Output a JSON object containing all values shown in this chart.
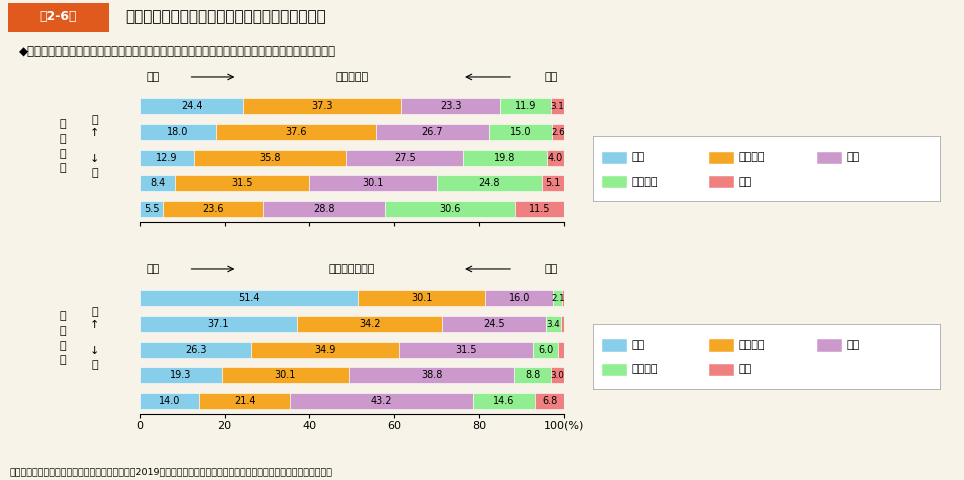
{
  "bg_color": "#f8f3e8",
  "header_box_color": "#e05a1e",
  "header_text": "第2-6図",
  "title_text": "自然体験と自己肯定感、道徳観・正義感との関係",
  "subtitle": "◆自然体験を多く経験した子供ほど自己肯定感や道徳観・正義感が高い傾向があることが見られる。",
  "source": "（出典）独立行政法人国立青少年教育振興機構（2019）「青少年の体験活動等に関する意識調査（平成２８年度調査）」",
  "chart1": {
    "header_left": "高い",
    "header_mid": "自己肯定感",
    "header_right": "低い",
    "ylabel1": "自\n然\n体\n験",
    "ylabel2": "多\n↑\n\n↓\n少",
    "rows": [
      [
        24.4,
        37.3,
        23.3,
        11.9,
        3.1
      ],
      [
        18.0,
        37.6,
        26.7,
        15.0,
        2.6
      ],
      [
        12.9,
        35.8,
        27.5,
        19.8,
        4.0
      ],
      [
        8.4,
        31.5,
        30.1,
        24.8,
        5.1
      ],
      [
        5.5,
        23.6,
        28.8,
        30.6,
        11.5
      ]
    ],
    "colors": [
      "#87ceeb",
      "#f5a623",
      "#cc99cc",
      "#90ee90",
      "#f08080"
    ],
    "legend_row1": [
      "高い",
      "やや高い",
      "普通"
    ],
    "legend_row2": [
      "やや低い",
      "低い"
    ]
  },
  "chart2": {
    "header_left": "ある",
    "header_mid": "道徳観・正義感",
    "header_right": "ない",
    "ylabel1": "自\n然\n体\n験",
    "ylabel2": "多\n↑\n\n↓\n少",
    "rows": [
      [
        51.4,
        30.1,
        16.0,
        2.1,
        0.5
      ],
      [
        37.1,
        34.2,
        24.5,
        3.4,
        0.9
      ],
      [
        26.3,
        34.9,
        31.5,
        6.0,
        1.3
      ],
      [
        19.3,
        30.1,
        38.8,
        8.8,
        3.0
      ],
      [
        14.0,
        21.4,
        43.2,
        14.6,
        6.8
      ]
    ],
    "colors": [
      "#87ceeb",
      "#f5a623",
      "#cc99cc",
      "#90ee90",
      "#f08080"
    ],
    "legend_row1": [
      "ある",
      "ややある",
      "普通"
    ],
    "legend_row2": [
      "ややない",
      "ない"
    ]
  }
}
